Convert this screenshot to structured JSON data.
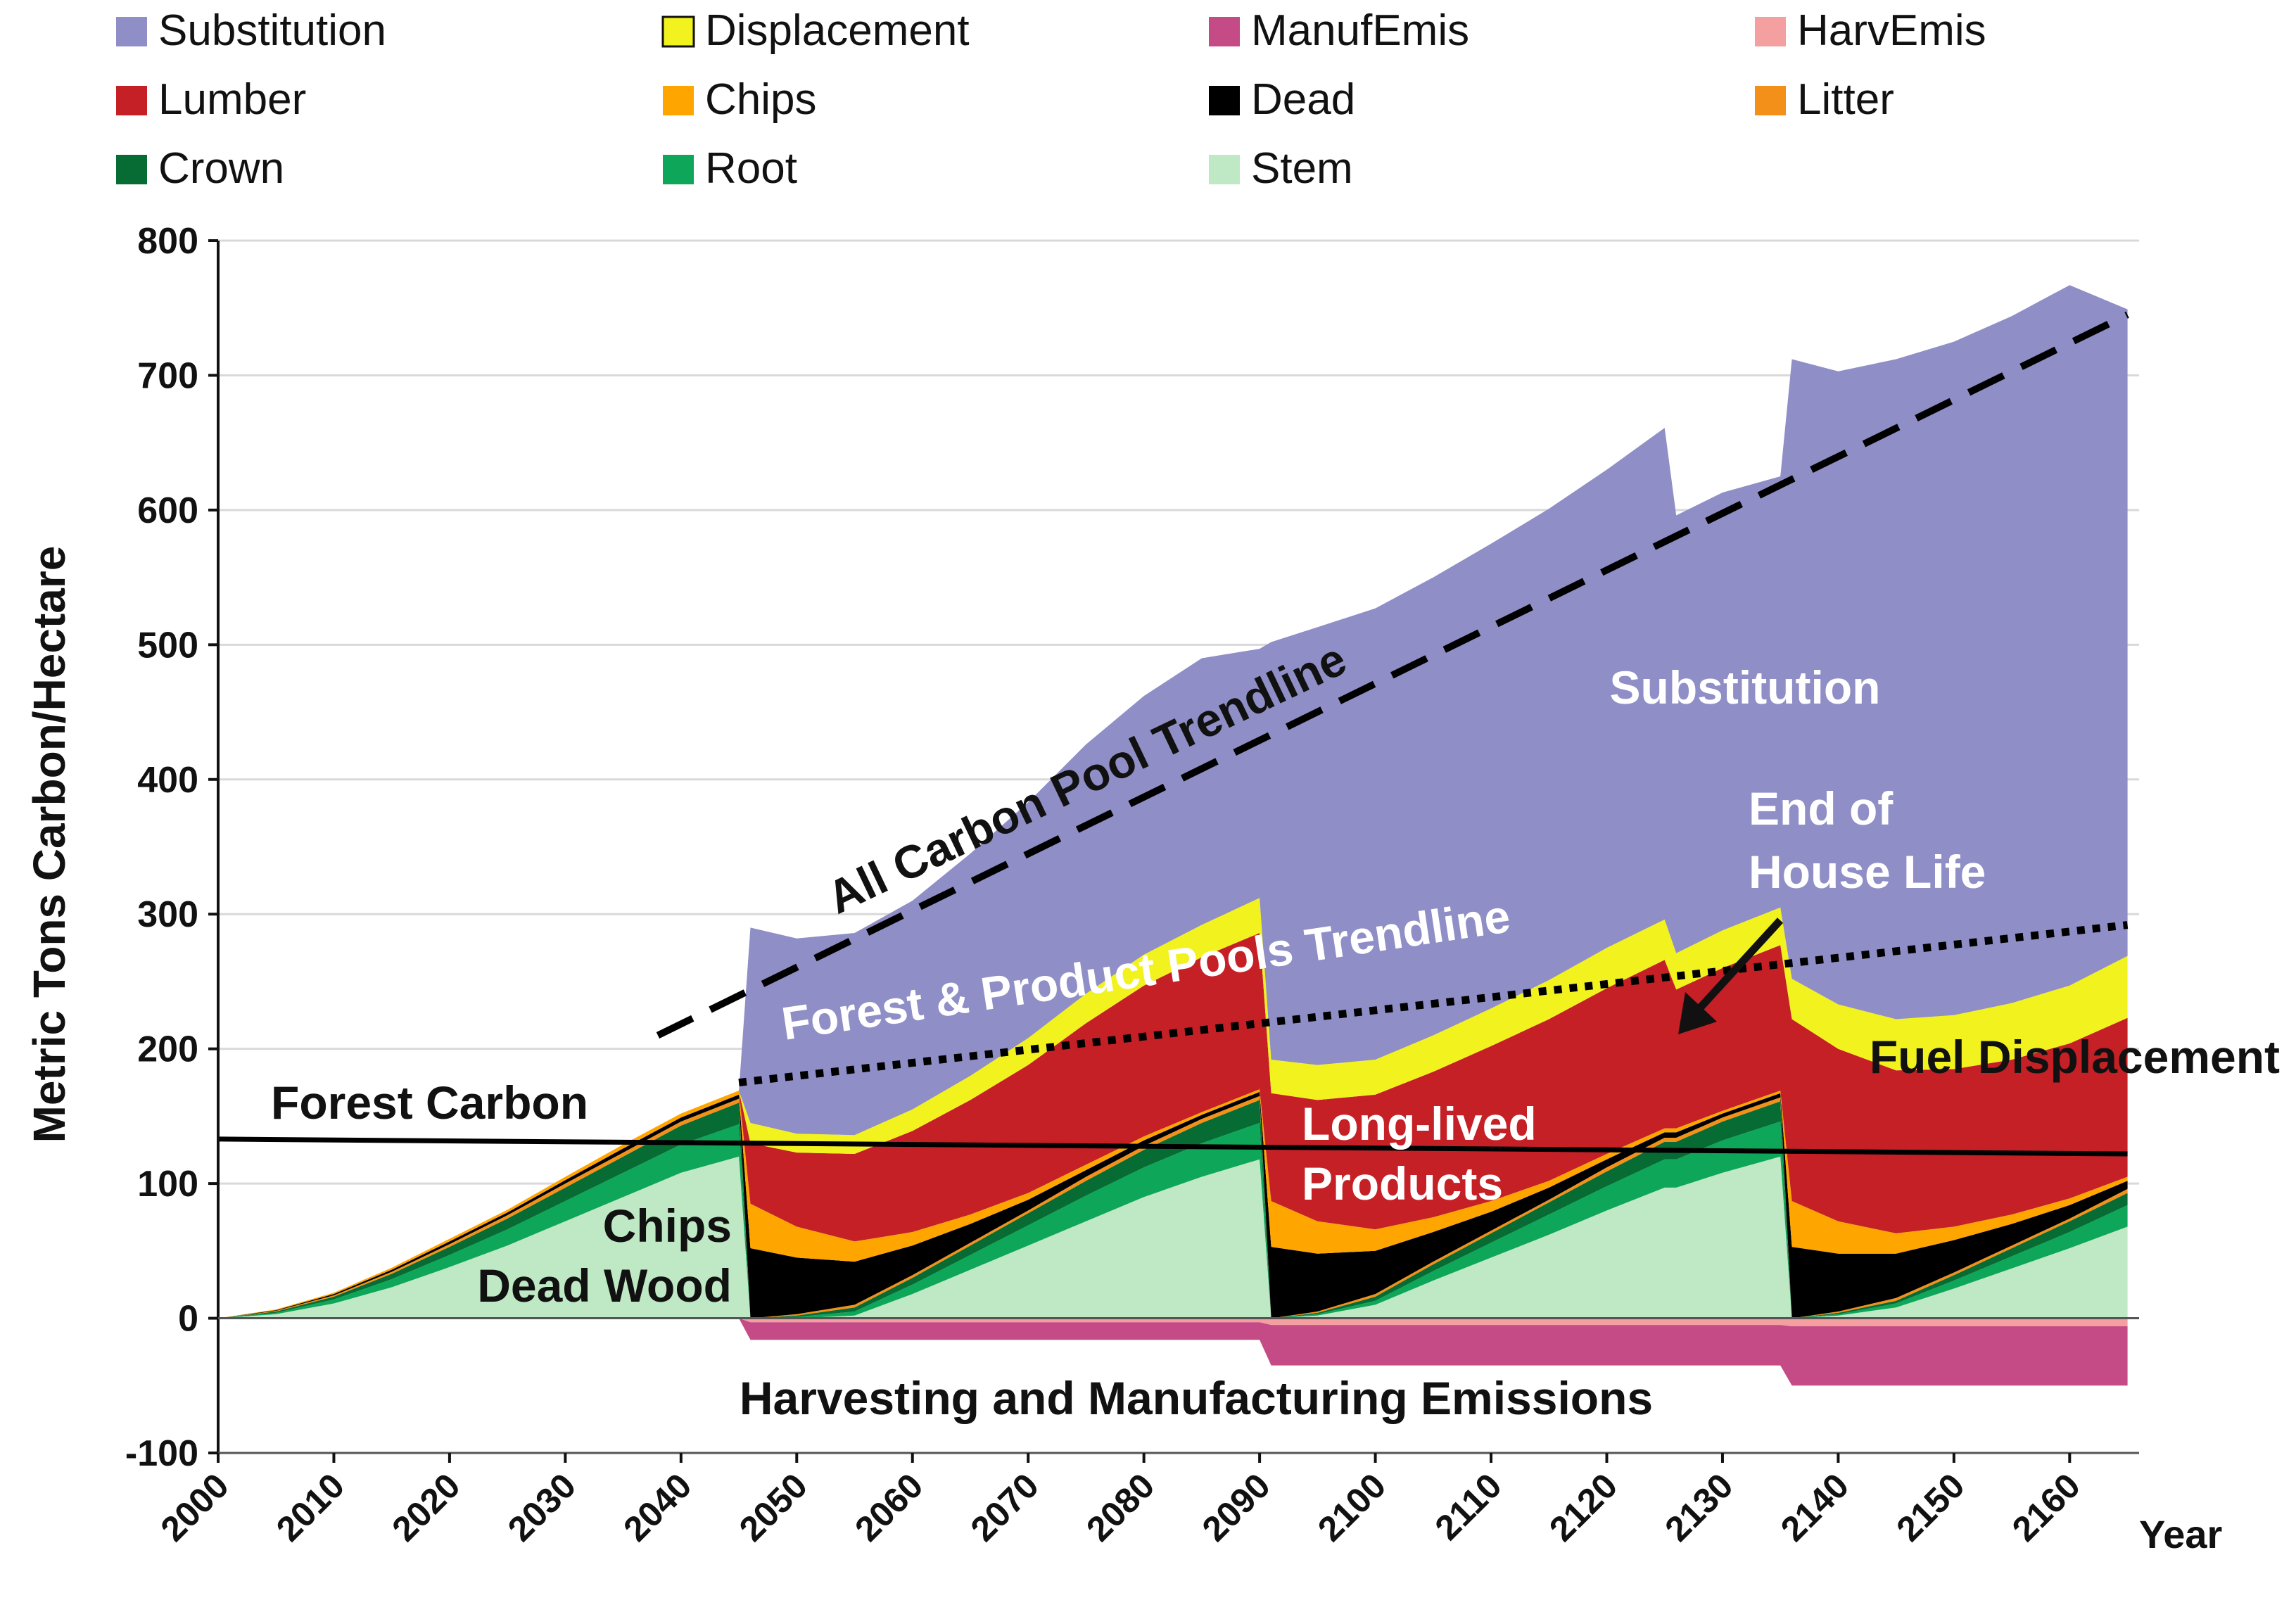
{
  "chart_data": {
    "type": "area",
    "title": "",
    "xlabel": "Year",
    "ylabel": "Metric Tons Carbon/Hectare",
    "xlim": [
      2000,
      2166
    ],
    "ylim": [
      -100,
      800
    ],
    "y_ticks": [
      800,
      700,
      600,
      500,
      400,
      300,
      200,
      100,
      0,
      -100
    ],
    "x_ticks": [
      2000,
      2010,
      2020,
      2030,
      2040,
      2050,
      2060,
      2070,
      2080,
      2090,
      2100,
      2110,
      2120,
      2130,
      2140,
      2150,
      2160
    ],
    "grid": true,
    "legend": {
      "position": "top",
      "entries": [
        {
          "name": "Substitution",
          "color": "#8f8ec6"
        },
        {
          "name": "Displacement",
          "color": "#f2f21e"
        },
        {
          "name": "ManufEmis",
          "color": "#c44b85"
        },
        {
          "name": "HarvEmis",
          "color": "#f4a0a0"
        },
        {
          "name": "Lumber",
          "color": "#c42026"
        },
        {
          "name": "Chips",
          "color": "#ffa500"
        },
        {
          "name": "Dead",
          "color": "#000000"
        },
        {
          "name": "Litter",
          "color": "#f39019"
        },
        {
          "name": "Crown",
          "color": "#066c34"
        },
        {
          "name": "Root",
          "color": "#0ea659"
        },
        {
          "name": "Stem",
          "color": "#bfe8c4"
        }
      ]
    },
    "x": [
      2000,
      2005,
      2010,
      2015,
      2020,
      2025,
      2030,
      2035,
      2040,
      2045,
      2046,
      2050,
      2055,
      2060,
      2065,
      2070,
      2075,
      2080,
      2085,
      2090,
      2091,
      2095,
      2100,
      2105,
      2110,
      2115,
      2120,
      2125,
      2126,
      2130,
      2135,
      2136,
      2140,
      2145,
      2150,
      2155,
      2160,
      2165
    ],
    "series": [
      {
        "name": "Stem",
        "values": [
          0,
          3,
          11,
          23,
          38,
          54,
          72,
          90,
          108,
          120,
          0,
          0,
          2,
          18,
          36,
          54,
          72,
          90,
          105,
          118,
          0,
          2,
          10,
          28,
          45,
          62,
          80,
          97,
          97,
          108,
          120,
          0,
          2,
          8,
          22,
          37,
          52,
          68
        ]
      },
      {
        "name": "Root",
        "values": [
          0,
          1,
          3,
          6,
          9,
          12,
          15,
          18,
          21,
          24,
          0,
          1,
          3,
          7,
          11,
          15,
          19,
          22,
          25,
          27,
          0,
          1,
          3,
          7,
          11,
          15,
          18,
          21,
          21,
          24,
          26,
          0,
          1,
          3,
          6,
          9,
          12,
          16
        ]
      },
      {
        "name": "Crown",
        "values": [
          0,
          1,
          2,
          4,
          6,
          8,
          10,
          12,
          14,
          16,
          0,
          1,
          3,
          5,
          7,
          9,
          11,
          13,
          15,
          17,
          0,
          1,
          3,
          5,
          7,
          9,
          11,
          13,
          13,
          14,
          15,
          0,
          1,
          2,
          4,
          6,
          8,
          9
        ]
      },
      {
        "name": "Litter",
        "values": [
          0,
          0.5,
          1,
          1.5,
          2,
          2.5,
          3,
          3,
          3,
          3,
          0,
          1,
          2,
          2,
          2,
          2,
          3,
          3,
          3,
          3,
          0,
          1,
          2,
          2,
          2,
          2,
          3,
          3,
          3,
          3,
          3,
          0,
          1,
          2,
          2,
          2,
          2,
          3
        ]
      },
      {
        "name": "Dead",
        "values": [
          0,
          0.5,
          1,
          1.5,
          2,
          2,
          2.5,
          3,
          3,
          3,
          52,
          42,
          32,
          22,
          14,
          8,
          5,
          4,
          3,
          3,
          53,
          43,
          32,
          22,
          14,
          9,
          6,
          4,
          4,
          3,
          3,
          53,
          43,
          33,
          24,
          16,
          10,
          6
        ]
      },
      {
        "name": "Chips",
        "values": [
          0,
          0.5,
          1,
          1.5,
          2,
          2,
          2.5,
          3,
          3,
          3,
          33,
          23,
          15,
          10,
          7,
          5,
          4,
          3,
          2,
          2,
          34,
          24,
          16,
          11,
          8,
          5,
          4,
          3,
          3,
          2,
          2,
          34,
          24,
          15,
          10,
          7,
          5,
          3
        ]
      },
      {
        "name": "Lumber",
        "values": [
          0,
          0,
          0,
          0,
          0,
          0,
          0,
          0,
          0,
          0,
          45,
          55,
          65,
          75,
          85,
          95,
          105,
          112,
          115,
          116,
          80,
          90,
          100,
          108,
          115,
          120,
          123,
          125,
          103,
          106,
          108,
          135,
          128,
          121,
          117,
          115,
          115,
          118
        ]
      },
      {
        "name": "Displacement",
        "values": [
          0,
          0,
          0,
          0,
          0,
          0,
          0,
          0,
          0,
          0,
          15,
          14,
          14,
          16,
          18,
          20,
          22,
          23,
          24,
          26,
          25,
          26,
          26,
          27,
          28,
          29,
          30,
          30,
          27,
          28,
          28,
          30,
          33,
          38,
          40,
          42,
          43,
          46
        ]
      },
      {
        "name": "Substitution",
        "values": [
          0,
          0,
          0,
          0,
          0,
          0,
          0,
          0,
          0,
          0,
          145,
          145,
          150,
          155,
          165,
          175,
          185,
          192,
          198,
          185,
          310,
          325,
          335,
          340,
          345,
          350,
          355,
          365,
          325,
          325,
          320,
          460,
          470,
          490,
          500,
          510,
          520,
          480
        ]
      },
      {
        "name": "HarvEmis",
        "values": [
          0,
          0,
          0,
          0,
          0,
          0,
          0,
          0,
          0,
          0,
          -3,
          -3,
          -3,
          -3,
          -3,
          -3,
          -3,
          -3,
          -3,
          -3,
          -5,
          -5,
          -5,
          -5,
          -5,
          -5,
          -5,
          -5,
          -5,
          -5,
          -5,
          -6,
          -6,
          -6,
          -6,
          -6,
          -6,
          -6
        ]
      },
      {
        "name": "ManufEmis",
        "values": [
          0,
          0,
          0,
          0,
          0,
          0,
          0,
          0,
          0,
          0,
          -13,
          -13,
          -13,
          -13,
          -13,
          -13,
          -13,
          -13,
          -13,
          -13,
          -30,
          -30,
          -30,
          -30,
          -30,
          -30,
          -30,
          -30,
          -30,
          -30,
          -30,
          -44,
          -44,
          -44,
          -44,
          -44,
          -44,
          -44
        ]
      }
    ],
    "trendlines": [
      {
        "name": "All Carbon Pool Trendline",
        "style": "dashed",
        "x": [
          2038,
          2165
        ],
        "y": [
          210,
          745
        ]
      },
      {
        "name": "Forest & Product Pools Trendline",
        "style": "dotted",
        "x": [
          2045,
          2165
        ],
        "y": [
          175,
          292
        ]
      },
      {
        "name": "Forest Carbon",
        "style": "solid",
        "x": [
          2000,
          2165
        ],
        "y": [
          133,
          122
        ]
      }
    ],
    "annotations": {
      "all_carbon_trendline": "All Carbon Pool Trendline",
      "forest_product_trendline": "Forest & Product Pools Trendline",
      "forest_carbon": "Forest Carbon",
      "chips": "Chips",
      "dead_wood": "Dead Wood",
      "substitution": "Substitution",
      "end_of_house_life_1": "End of",
      "end_of_house_life_2": "House Life",
      "fuel_displacement": "Fuel Displacement",
      "long_lived_1": "Long-lived",
      "long_lived_2": "Products",
      "emissions": "Harvesting and Manufacturing Emissions"
    }
  }
}
